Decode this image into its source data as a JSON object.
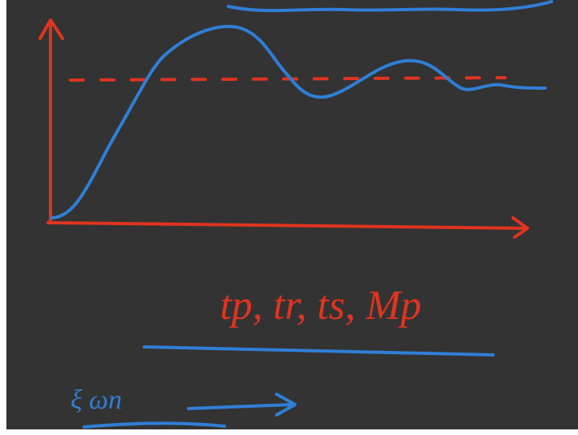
{
  "annotations": {
    "time_specs": "tp, tr, ts, Mp",
    "parameters": "ξ ωn"
  }
}
